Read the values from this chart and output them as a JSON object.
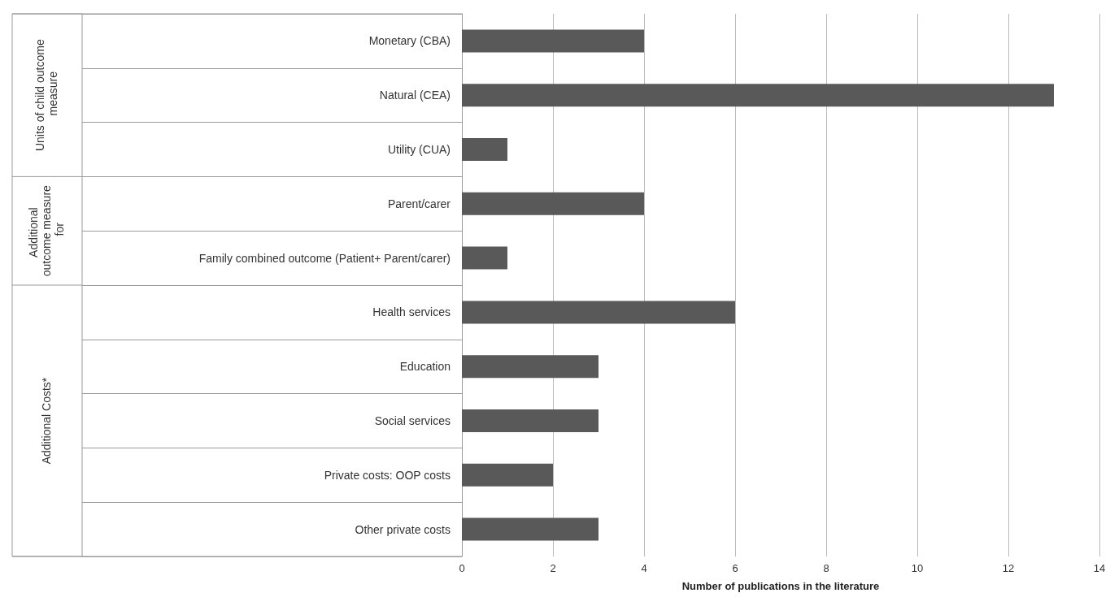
{
  "chart_data": {
    "type": "bar",
    "orientation": "horizontal",
    "xlabel": "Number of publications in the literature",
    "categories": [
      "Monetary (CBA)",
      "Natural (CEA)",
      "Utility (CUA)",
      "Parent/carer",
      "Family combined outcome (Patient+ Parent/carer)",
      "Health services",
      "Education",
      "Social services",
      "Private costs: OOP costs",
      "Other private costs"
    ],
    "values": [
      4,
      13,
      1,
      4,
      1,
      6,
      3,
      3,
      2,
      3
    ],
    "color": "#595959",
    "xlim": [
      0,
      14
    ],
    "xticks": [
      0,
      2,
      4,
      6,
      8,
      10,
      12,
      14
    ],
    "grid": "x",
    "annotations": [
      "Units of child outcome measure",
      "Additional outcome measure for",
      "Additional Costs*"
    ]
  }
}
